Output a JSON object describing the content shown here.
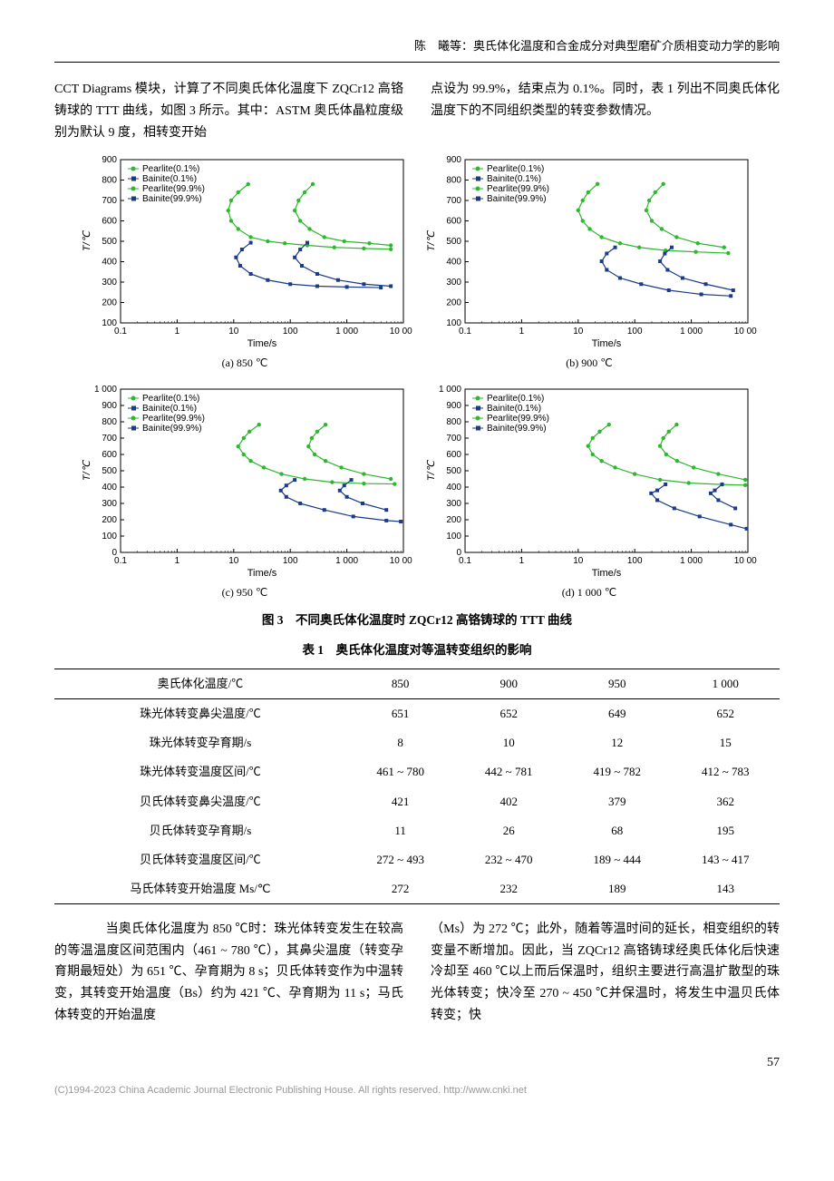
{
  "header": {
    "runningTitle": "陈　曦等：奥氏体化温度和合金成分对典型磨矿介质相变动力学的影响"
  },
  "para1": {
    "left": "CCT Diagrams 模块，计算了不同奥氏体化温度下 ZQCr12 高铬铸球的 TTT 曲线，如图 3 所示。其中：ASTM 奥氏体晶粒度级别为默认 9 度，相转变开始",
    "right": "点设为 99.9%，结束点为 0.1%。同时，表 1 列出不同奥氏体化温度下的不同组织类型的转变参数情况。"
  },
  "figure3": {
    "caption": "图 3　不同奥氏体化温度时 ZQCr12 高铬铸球的 TTT 曲线",
    "xlabel": "Time/s",
    "ylabel": "T/℃",
    "legendItems": [
      {
        "label": "Pearlite(0.1%)",
        "marker": "circle",
        "color": "#2db82d"
      },
      {
        "label": "Bainite(0.1%)",
        "marker": "square",
        "color": "#1a3a8a"
      },
      {
        "label": "Pearlite(99.9%)",
        "marker": "circle",
        "color": "#2db82d"
      },
      {
        "label": "Bainite(99.9%)",
        "marker": "square",
        "color": "#1a3a8a"
      }
    ],
    "panels": [
      {
        "id": "a",
        "sub": "(a) 850 ℃",
        "ylim": [
          100,
          900
        ],
        "yticks": [
          100,
          200,
          300,
          400,
          500,
          600,
          700,
          800,
          900
        ],
        "xlim": [
          0.1,
          10000
        ],
        "xticks": [
          0.1,
          1,
          10,
          100,
          1000,
          10000
        ],
        "series": {
          "pearlite_start": [
            [
              18,
              780
            ],
            [
              12,
              740
            ],
            [
              9,
              700
            ],
            [
              8,
              651
            ],
            [
              9,
              600
            ],
            [
              12,
              560
            ],
            [
              20,
              520
            ],
            [
              40,
              500
            ],
            [
              80,
              490
            ],
            [
              200,
              480
            ],
            [
              600,
              470
            ],
            [
              2000,
              465
            ],
            [
              6000,
              461
            ]
          ],
          "pearlite_end": [
            [
              250,
              780
            ],
            [
              180,
              740
            ],
            [
              140,
              700
            ],
            [
              120,
              651
            ],
            [
              150,
              600
            ],
            [
              220,
              560
            ],
            [
              400,
              520
            ],
            [
              900,
              500
            ],
            [
              2500,
              490
            ],
            [
              6000,
              480
            ]
          ],
          "bainite_start": [
            [
              20,
              493
            ],
            [
              14,
              460
            ],
            [
              11,
              421
            ],
            [
              13,
              380
            ],
            [
              20,
              340
            ],
            [
              40,
              310
            ],
            [
              100,
              290
            ],
            [
              300,
              280
            ],
            [
              1000,
              276
            ],
            [
              4000,
              273
            ]
          ],
          "bainite_end": [
            [
              200,
              493
            ],
            [
              150,
              460
            ],
            [
              120,
              421
            ],
            [
              160,
              380
            ],
            [
              300,
              340
            ],
            [
              700,
              310
            ],
            [
              2000,
              290
            ],
            [
              6000,
              280
            ]
          ]
        }
      },
      {
        "id": "b",
        "sub": "(b) 900 ℃",
        "ylim": [
          100,
          900
        ],
        "yticks": [
          100,
          200,
          300,
          400,
          500,
          600,
          700,
          800,
          900
        ],
        "xlim": [
          0.1,
          10000
        ],
        "xticks": [
          0.1,
          1,
          10,
          100,
          1000,
          10000
        ],
        "series": {
          "pearlite_start": [
            [
              22,
              781
            ],
            [
              15,
              740
            ],
            [
              12,
              700
            ],
            [
              10,
              652
            ],
            [
              12,
              600
            ],
            [
              16,
              560
            ],
            [
              26,
              520
            ],
            [
              55,
              490
            ],
            [
              120,
              470
            ],
            [
              350,
              455
            ],
            [
              1200,
              448
            ],
            [
              4500,
              442
            ]
          ],
          "pearlite_end": [
            [
              320,
              781
            ],
            [
              230,
              740
            ],
            [
              180,
              700
            ],
            [
              160,
              652
            ],
            [
              200,
              600
            ],
            [
              300,
              560
            ],
            [
              550,
              520
            ],
            [
              1300,
              490
            ],
            [
              3800,
              470
            ]
          ],
          "bainite_start": [
            [
              45,
              470
            ],
            [
              32,
              440
            ],
            [
              26,
              402
            ],
            [
              32,
              360
            ],
            [
              55,
              320
            ],
            [
              130,
              290
            ],
            [
              400,
              260
            ],
            [
              1500,
              240
            ],
            [
              5000,
              232
            ]
          ],
          "bainite_end": [
            [
              450,
              470
            ],
            [
              340,
              440
            ],
            [
              280,
              402
            ],
            [
              380,
              360
            ],
            [
              700,
              320
            ],
            [
              1800,
              290
            ],
            [
              5500,
              260
            ]
          ]
        }
      },
      {
        "id": "c",
        "sub": "(c) 950 ℃",
        "ylim": [
          0,
          1000
        ],
        "yticks": [
          0,
          100,
          200,
          300,
          400,
          500,
          600,
          700,
          800,
          900,
          1000
        ],
        "xlim": [
          0.1,
          10000
        ],
        "xticks": [
          0.1,
          1,
          10,
          100,
          1000,
          10000
        ],
        "series": {
          "pearlite_start": [
            [
              28,
              782
            ],
            [
              19,
              740
            ],
            [
              15,
              700
            ],
            [
              12,
              649
            ],
            [
              15,
              600
            ],
            [
              20,
              560
            ],
            [
              34,
              520
            ],
            [
              70,
              480
            ],
            [
              180,
              450
            ],
            [
              550,
              430
            ],
            [
              2000,
              422
            ],
            [
              7000,
              419
            ]
          ],
          "pearlite_end": [
            [
              420,
              782
            ],
            [
              300,
              740
            ],
            [
              240,
              700
            ],
            [
              210,
              649
            ],
            [
              270,
              600
            ],
            [
              420,
              560
            ],
            [
              800,
              520
            ],
            [
              2000,
              480
            ],
            [
              6000,
              450
            ]
          ],
          "bainite_start": [
            [
              120,
              444
            ],
            [
              85,
              410
            ],
            [
              68,
              379
            ],
            [
              85,
              340
            ],
            [
              150,
              300
            ],
            [
              400,
              260
            ],
            [
              1300,
              220
            ],
            [
              5000,
              195
            ],
            [
              9000,
              189
            ]
          ],
          "bainite_end": [
            [
              1200,
              444
            ],
            [
              900,
              410
            ],
            [
              750,
              379
            ],
            [
              1000,
              340
            ],
            [
              1900,
              300
            ],
            [
              5000,
              260
            ]
          ]
        }
      },
      {
        "id": "d",
        "sub": "(d) 1 000 ℃",
        "ylim": [
          0,
          1000
        ],
        "yticks": [
          0,
          100,
          200,
          300,
          400,
          500,
          600,
          700,
          800,
          900,
          1000
        ],
        "xlim": [
          0.1,
          10000
        ],
        "xticks": [
          0.1,
          1,
          10,
          100,
          1000,
          10000
        ],
        "series": {
          "pearlite_start": [
            [
              35,
              783
            ],
            [
              24,
              740
            ],
            [
              18,
              700
            ],
            [
              15,
              652
            ],
            [
              18,
              600
            ],
            [
              26,
              560
            ],
            [
              45,
              520
            ],
            [
              100,
              480
            ],
            [
              280,
              445
            ],
            [
              900,
              425
            ],
            [
              3500,
              416
            ],
            [
              9000,
              412
            ]
          ],
          "pearlite_end": [
            [
              550,
              783
            ],
            [
              400,
              740
            ],
            [
              320,
              700
            ],
            [
              280,
              652
            ],
            [
              360,
              600
            ],
            [
              560,
              560
            ],
            [
              1100,
              520
            ],
            [
              3000,
              480
            ],
            [
              9000,
              445
            ]
          ],
          "bainite_start": [
            [
              350,
              417
            ],
            [
              250,
              380
            ],
            [
              195,
              362
            ],
            [
              250,
              320
            ],
            [
              500,
              270
            ],
            [
              1400,
              220
            ],
            [
              5000,
              170
            ],
            [
              9500,
              145
            ]
          ],
          "bainite_end": [
            [
              3500,
              417
            ],
            [
              2600,
              380
            ],
            [
              2200,
              362
            ],
            [
              3000,
              320
            ],
            [
              6000,
              270
            ]
          ]
        }
      }
    ],
    "colors": {
      "axisColor": "#000000",
      "gridColor": "#e0e0e0",
      "pearlite": "#2db82d",
      "bainite": "#1a3a8a",
      "background": "#ffffff"
    },
    "fontsize": {
      "tick": 10,
      "label": 11,
      "legend": 10
    }
  },
  "table1": {
    "caption": "表 1　奥氏体化温度对等温转变组织的影响",
    "header": [
      "奥氏体化温度/℃",
      "850",
      "900",
      "950",
      "1 000"
    ],
    "rows": [
      [
        "珠光体转变鼻尖温度/℃",
        "651",
        "652",
        "649",
        "652"
      ],
      [
        "珠光体转变孕育期/s",
        "8",
        "10",
        "12",
        "15"
      ],
      [
        "珠光体转变温度区间/℃",
        "461 ~ 780",
        "442 ~ 781",
        "419 ~ 782",
        "412 ~ 783"
      ],
      [
        "贝氏体转变鼻尖温度/℃",
        "421",
        "402",
        "379",
        "362"
      ],
      [
        "贝氏体转变孕育期/s",
        "11",
        "26",
        "68",
        "195"
      ],
      [
        "贝氏体转变温度区间/℃",
        "272 ~ 493",
        "232 ~ 470",
        "189 ~ 444",
        "143 ~ 417"
      ],
      [
        "马氏体转变开始温度 Ms/℃",
        "272",
        "232",
        "189",
        "143"
      ]
    ]
  },
  "para2": {
    "left": "　　当奥氏体化温度为 850 ℃时：珠光体转变发生在较高的等温温度区间范围内（461 ~ 780 ℃），其鼻尖温度（转变孕育期最短处）为 651 ℃、孕育期为 8 s；贝氏体转变作为中温转变，其转变开始温度（Bs）约为 421 ℃、孕育期为 11 s；马氏体转变的开始温度",
    "right": "（Ms）为 272 ℃；此外，随着等温时间的延长，相变组织的转变量不断增加。因此，当 ZQCr12 高铬铸球经奥氏体化后快速冷却至 460 ℃以上而后保温时，组织主要进行高温扩散型的珠光体转变；快冷至 270 ~ 450 ℃并保温时，将发生中温贝氏体转变；快"
  },
  "pageNumber": "57",
  "footer": "(C)1994-2023 China Academic Journal Electronic Publishing House. All rights reserved.    http://www.cnki.net"
}
